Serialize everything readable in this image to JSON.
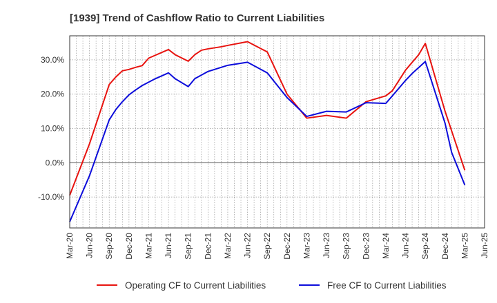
{
  "chart_data": {
    "type": "line",
    "title": "[1939]  Trend of Cashflow Ratio to Current Liabilities",
    "xlabel": "",
    "ylabel": "",
    "x": [
      "Mar-20",
      "Apr-20",
      "May-20",
      "Jun-20",
      "Jul-20",
      "Aug-20",
      "Sep-20",
      "Oct-20",
      "Nov-20",
      "Dec-20",
      "Jan-21",
      "Feb-21",
      "Mar-21",
      "Apr-21",
      "May-21",
      "Jun-21",
      "Jul-21",
      "Aug-21",
      "Sep-21",
      "Oct-21",
      "Nov-21",
      "Dec-21",
      "Jan-22",
      "Feb-22",
      "Mar-22",
      "Apr-22",
      "May-22",
      "Jun-22",
      "Jul-22",
      "Aug-22",
      "Sep-22",
      "Oct-22",
      "Nov-22",
      "Dec-22",
      "Jan-23",
      "Feb-23",
      "Mar-23",
      "Apr-23",
      "May-23",
      "Jun-23",
      "Jul-23",
      "Aug-23",
      "Sep-23",
      "Oct-23",
      "Nov-23",
      "Dec-23",
      "Jan-24",
      "Feb-24",
      "Mar-24",
      "Apr-24",
      "May-24",
      "Jun-24",
      "Jul-24",
      "Aug-24",
      "Sep-24",
      "Oct-24",
      "Nov-24",
      "Dec-24",
      "Jan-25",
      "Feb-25",
      "Mar-25",
      "Apr-25",
      "May-25",
      "Jun-25"
    ],
    "x_ticks": [
      "Mar-20",
      "Jun-20",
      "Sep-20",
      "Dec-20",
      "Mar-21",
      "Jun-21",
      "Sep-21",
      "Dec-21",
      "Mar-22",
      "Jun-22",
      "Sep-22",
      "Dec-22",
      "Mar-23",
      "Jun-23",
      "Sep-23",
      "Dec-23",
      "Mar-24",
      "Jun-24",
      "Sep-24",
      "Dec-24",
      "Mar-25",
      "Jun-25"
    ],
    "y_ticks": [
      -10,
      0,
      10,
      20,
      30
    ],
    "y_tick_labels": [
      "-10.0%",
      "0.0%",
      "10.0%",
      "20.0%",
      "30.0%"
    ],
    "ylim": [
      -19,
      37
    ],
    "grid": true,
    "legend_position": "bottom",
    "series": [
      {
        "name": "Operating CF to Current Liabilities",
        "color": "#e8130f",
        "points": [
          [
            "Mar-20",
            -9.5
          ],
          [
            "Jun-20",
            5.5
          ],
          [
            "Sep-20",
            22.8
          ],
          [
            "Oct-20",
            25.0
          ],
          [
            "Nov-20",
            26.8
          ],
          [
            "Dec-20",
            27.2
          ],
          [
            "Jan-21",
            27.8
          ],
          [
            "Feb-21",
            28.3
          ],
          [
            "Mar-21",
            30.5
          ],
          [
            "Jun-21",
            33.0
          ],
          [
            "Jul-21",
            31.5
          ],
          [
            "Sep-21",
            29.6
          ],
          [
            "Oct-21",
            31.5
          ],
          [
            "Nov-21",
            32.8
          ],
          [
            "Dec-21",
            33.2
          ],
          [
            "Feb-22",
            33.8
          ],
          [
            "Mar-22",
            34.2
          ],
          [
            "Jun-22",
            35.3
          ],
          [
            "Sep-22",
            32.3
          ],
          [
            "Dec-22",
            20.0
          ],
          [
            "Mar-23",
            13.0
          ],
          [
            "Jun-23",
            13.8
          ],
          [
            "Sep-23",
            13.0
          ],
          [
            "Dec-23",
            17.8
          ],
          [
            "Mar-24",
            19.5
          ],
          [
            "Apr-24",
            21.0
          ],
          [
            "Jun-24",
            27.0
          ],
          [
            "Aug-24",
            31.5
          ],
          [
            "Sep-24",
            34.8
          ],
          [
            "Dec-24",
            15.0
          ],
          [
            "Mar-25",
            -2.2
          ]
        ]
      },
      {
        "name": "Free CF to Current Liabilities",
        "color": "#0c0cdb",
        "points": [
          [
            "Mar-20",
            -17.2
          ],
          [
            "Jun-20",
            -3.8
          ],
          [
            "Sep-20",
            12.5
          ],
          [
            "Oct-20",
            15.5
          ],
          [
            "Nov-20",
            17.8
          ],
          [
            "Dec-20",
            19.8
          ],
          [
            "Jan-21",
            21.2
          ],
          [
            "Feb-21",
            22.5
          ],
          [
            "Mar-21",
            23.5
          ],
          [
            "Apr-21",
            24.5
          ],
          [
            "Jun-21",
            26.2
          ],
          [
            "Jul-21",
            24.5
          ],
          [
            "Sep-21",
            22.2
          ],
          [
            "Oct-21",
            24.5
          ],
          [
            "Dec-21",
            26.6
          ],
          [
            "Mar-22",
            28.4
          ],
          [
            "Jun-22",
            29.3
          ],
          [
            "Sep-22",
            26.2
          ],
          [
            "Dec-22",
            19.0
          ],
          [
            "Mar-23",
            13.5
          ],
          [
            "Jun-23",
            15.0
          ],
          [
            "Sep-23",
            14.8
          ],
          [
            "Dec-23",
            17.5
          ],
          [
            "Mar-24",
            17.3
          ],
          [
            "Apr-24",
            19.5
          ],
          [
            "Jun-24",
            24.0
          ],
          [
            "Jul-24",
            26.0
          ],
          [
            "Sep-24",
            29.5
          ],
          [
            "Dec-24",
            11.5
          ],
          [
            "Jan-25",
            3.0
          ],
          [
            "Mar-25",
            -6.5
          ]
        ]
      }
    ]
  }
}
